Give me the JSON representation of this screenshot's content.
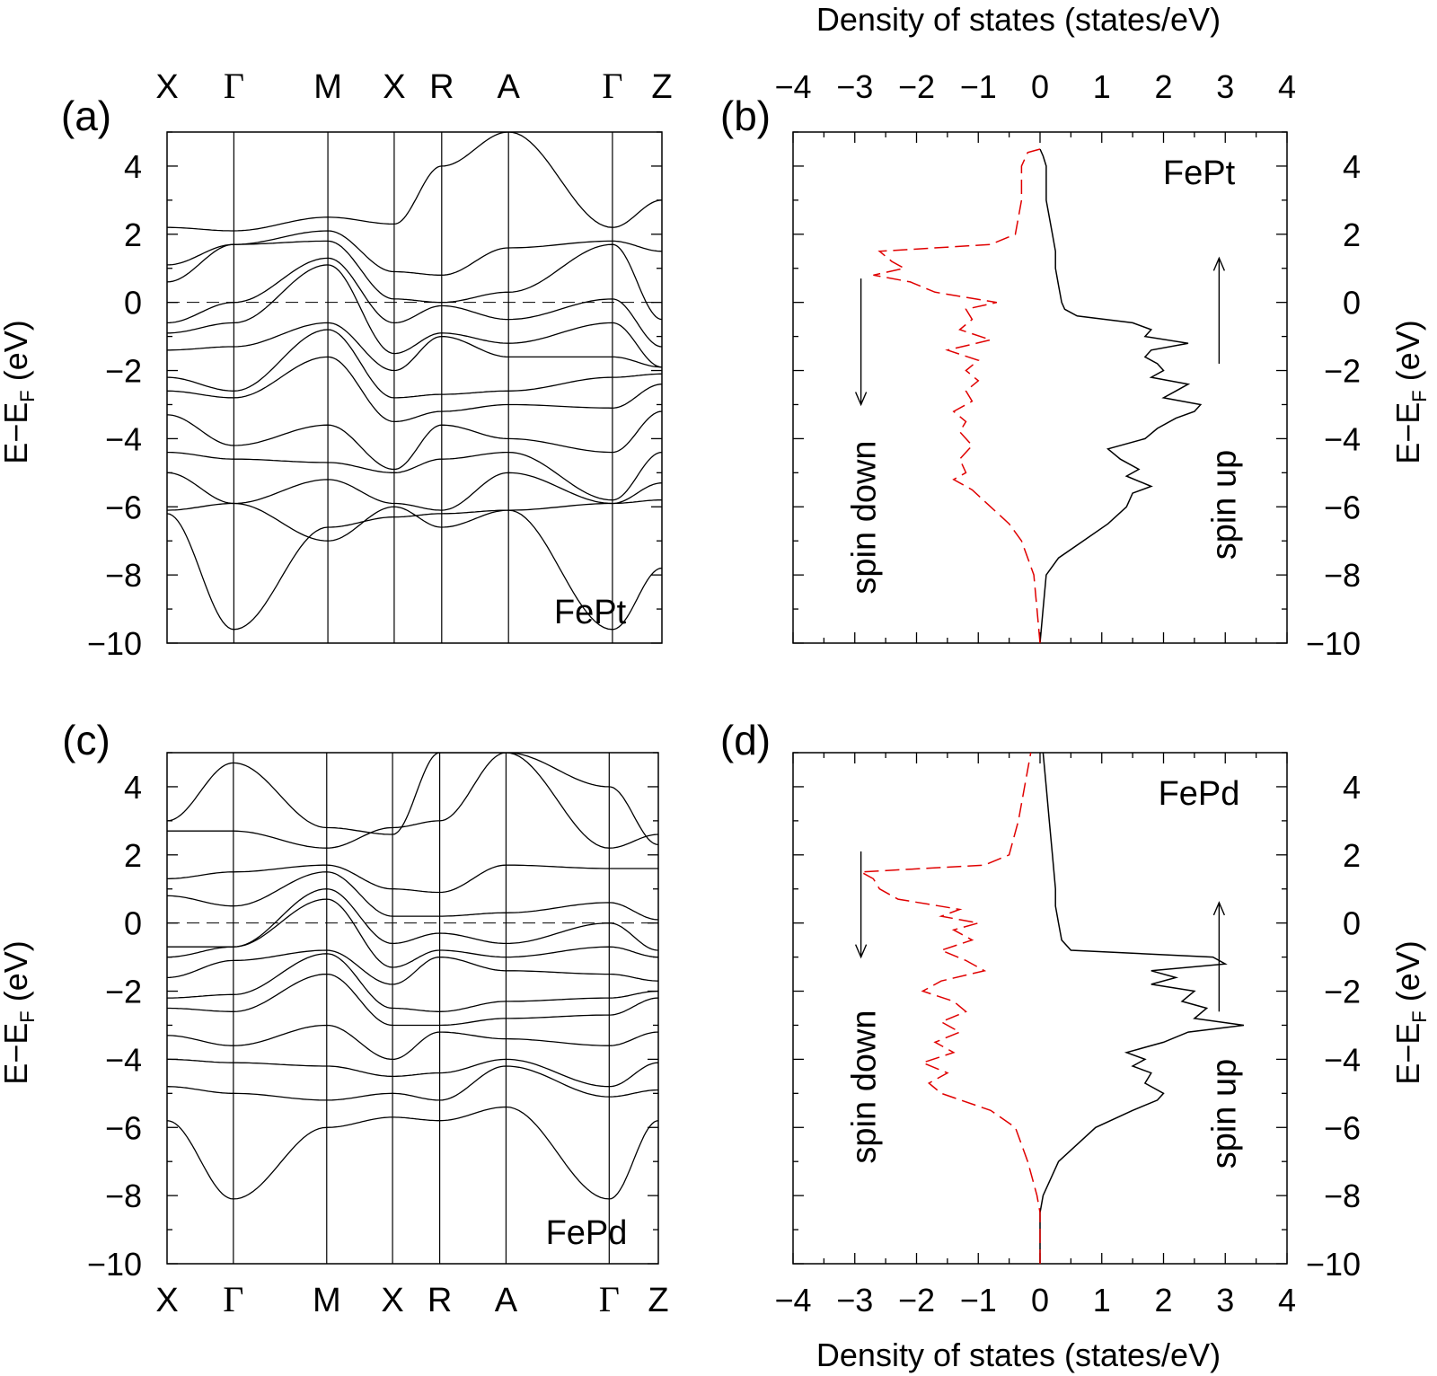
{
  "figure": {
    "top_axis_title": "Density of states (states/eV)",
    "bottom_axis_title": "Density of states (states/eV)",
    "colors": {
      "spin_up": "#000000",
      "spin_down": "#e00000",
      "bands": "#000000"
    }
  },
  "chart_data": [
    {
      "panel": "(a)",
      "type": "line",
      "material": "FePt",
      "ylabel": "E−E_F (eV)",
      "ylim": [
        -10,
        5
      ],
      "yticks": [
        "−10",
        "−8",
        "−6",
        "−4",
        "−2",
        "0",
        "2",
        "4"
      ],
      "kpoints": [
        "X",
        "Γ",
        "M",
        "X",
        "R",
        "A",
        "Γ",
        "Z"
      ],
      "kpoint_axis": "top",
      "fermi_level": 0,
      "band_energies_at_kpoints_eV": [
        [
          -6.2,
          -9.6,
          -6.6,
          -6.3,
          -6.2,
          -6.1,
          -9.6,
          -7.8
        ],
        [
          -6.1,
          -5.9,
          -7.0,
          -6.0,
          -6.6,
          -6.1,
          -5.9,
          -5.8
        ],
        [
          -5.0,
          -5.9,
          -5.2,
          -5.9,
          -6.1,
          -5.0,
          -5.9,
          -5.3
        ],
        [
          -4.4,
          -4.6,
          -4.7,
          -5.0,
          -4.6,
          -4.4,
          -5.8,
          -4.4
        ],
        [
          -3.3,
          -4.2,
          -3.6,
          -4.9,
          -3.6,
          -4.0,
          -4.4,
          -3.2
        ],
        [
          -2.6,
          -2.8,
          -1.6,
          -3.5,
          -3.2,
          -3.0,
          -3.1,
          -2.4
        ],
        [
          -2.2,
          -2.6,
          -0.8,
          -2.8,
          -2.7,
          -2.6,
          -2.2,
          -2.1
        ],
        [
          -1.4,
          -1.3,
          -0.6,
          -2.0,
          -1.0,
          -1.6,
          -1.6,
          -1.9
        ],
        [
          -0.9,
          -0.6,
          1.1,
          -1.5,
          -0.9,
          -1.2,
          -0.6,
          -1.9
        ],
        [
          -0.6,
          0.0,
          1.3,
          -0.6,
          -0.1,
          -0.5,
          0.1,
          -1.3
        ],
        [
          0.6,
          1.7,
          1.8,
          0.1,
          0.0,
          0.3,
          1.7,
          -0.5
        ],
        [
          1.1,
          1.7,
          2.1,
          0.9,
          0.8,
          1.6,
          1.8,
          1.5
        ],
        [
          2.2,
          2.1,
          2.5,
          2.3,
          4.0,
          5.0,
          2.2,
          3.0
        ]
      ]
    },
    {
      "panel": "(b)",
      "type": "line",
      "material": "FePt",
      "xlabel": "Density of states (states/eV)",
      "ylabel": "E−E_F (eV)",
      "xlim": [
        -4,
        4
      ],
      "ylim": [
        -10,
        5
      ],
      "xticks": [
        "−4",
        "−3",
        "−2",
        "−1",
        "0",
        "1",
        "2",
        "3",
        "4"
      ],
      "yticks": [
        "−10",
        "−8",
        "−6",
        "−4",
        "−2",
        "0",
        "2",
        "4"
      ],
      "annotations": [
        "spin up",
        "spin down"
      ],
      "series": [
        {
          "name": "spin up",
          "energy": [
            -10,
            -9,
            -8,
            -7.5,
            -7,
            -6.5,
            -6,
            -5.6,
            -5.4,
            -5.1,
            -4.9,
            -4.6,
            -4.3,
            -4,
            -3.7,
            -3.4,
            -3.2,
            -3.0,
            -2.8,
            -2.6,
            -2.4,
            -2.2,
            -2.0,
            -1.8,
            -1.6,
            -1.4,
            -1.2,
            -1.0,
            -0.8,
            -0.6,
            -0.4,
            -0.2,
            0,
            0.5,
            1,
            1.5,
            2,
            3,
            4,
            4.3,
            4.5
          ],
          "dos": [
            0.0,
            0.05,
            0.1,
            0.3,
            0.7,
            1.1,
            1.4,
            1.5,
            1.8,
            1.4,
            1.6,
            1.3,
            1.1,
            1.7,
            1.9,
            2.2,
            2.5,
            2.6,
            2.0,
            2.2,
            2.4,
            1.8,
            2.0,
            1.9,
            1.7,
            1.8,
            2.4,
            1.7,
            1.8,
            1.5,
            0.6,
            0.4,
            0.35,
            0.3,
            0.25,
            0.25,
            0.2,
            0.1,
            0.1,
            0.05,
            0.0
          ]
        },
        {
          "name": "spin down",
          "energy": [
            -10,
            -9,
            -8,
            -7.5,
            -7,
            -6.5,
            -6,
            -5.5,
            -5.2,
            -5.0,
            -4.6,
            -4.2,
            -3.8,
            -3.5,
            -3.2,
            -2.9,
            -2.6,
            -2.3,
            -2.0,
            -1.7,
            -1.4,
            -1.1,
            -0.8,
            -0.5,
            -0.2,
            0,
            0.3,
            0.6,
            0.8,
            1.0,
            1.2,
            1.5,
            1.7,
            2,
            3,
            4,
            4.4,
            4.5
          ],
          "dos": [
            0.0,
            -0.05,
            -0.1,
            -0.2,
            -0.3,
            -0.5,
            -0.8,
            -1.1,
            -1.4,
            -1.2,
            -1.3,
            -1.1,
            -1.3,
            -1.2,
            -1.4,
            -1.1,
            -1.2,
            -1.0,
            -1.2,
            -1.0,
            -1.5,
            -0.8,
            -1.3,
            -1.1,
            -1.2,
            -0.7,
            -1.7,
            -2.1,
            -2.7,
            -2.2,
            -2.4,
            -2.6,
            -0.8,
            -0.4,
            -0.3,
            -0.3,
            -0.2,
            0.0
          ]
        }
      ]
    },
    {
      "panel": "(c)",
      "type": "line",
      "material": "FePd",
      "ylabel": "E−E_F (eV)",
      "ylim": [
        -10,
        5
      ],
      "yticks": [
        "−10",
        "−8",
        "−6",
        "−4",
        "−2",
        "0",
        "2",
        "4"
      ],
      "kpoints": [
        "X",
        "Γ",
        "M",
        "X",
        "R",
        "A",
        "Γ",
        "Z"
      ],
      "kpoint_axis": "bottom",
      "fermi_level": 0,
      "band_energies_at_kpoints_eV": [
        [
          -5.8,
          -8.1,
          -6.0,
          -5.7,
          -5.8,
          -5.4,
          -8.1,
          -5.8
        ],
        [
          -4.8,
          -5.0,
          -5.2,
          -5.0,
          -5.2,
          -4.2,
          -5.1,
          -4.9
        ],
        [
          -4.0,
          -4.1,
          -4.2,
          -4.5,
          -4.4,
          -4.0,
          -4.8,
          -4.1
        ],
        [
          -3.3,
          -3.6,
          -3.0,
          -4.0,
          -3.2,
          -3.4,
          -3.6,
          -3.2
        ],
        [
          -2.5,
          -2.6,
          -1.5,
          -3.0,
          -3.0,
          -2.8,
          -2.7,
          -2.2
        ],
        [
          -2.2,
          -2.1,
          -0.9,
          -2.5,
          -2.6,
          -2.3,
          -2.2,
          -2.0
        ],
        [
          -1.6,
          -1.1,
          -0.8,
          -1.8,
          -1.0,
          -1.4,
          -1.5,
          -1.7
        ],
        [
          -1.0,
          -0.7,
          0.7,
          -1.3,
          -0.8,
          -1.0,
          -0.7,
          -1.0
        ],
        [
          -0.7,
          -0.7,
          1.0,
          -0.6,
          -0.3,
          -0.6,
          0.0,
          -0.8
        ],
        [
          0.8,
          0.5,
          1.5,
          0.2,
          0.2,
          0.3,
          0.6,
          0.1
        ],
        [
          1.3,
          1.5,
          1.7,
          1.0,
          0.9,
          1.7,
          1.6,
          1.6
        ],
        [
          2.7,
          2.7,
          2.2,
          2.8,
          3.0,
          5.0,
          2.2,
          2.6
        ],
        [
          3.0,
          4.7,
          2.8,
          2.6,
          5.0,
          5.0,
          4.0,
          2.3
        ]
      ]
    },
    {
      "panel": "(d)",
      "type": "line",
      "material": "FePd",
      "xlabel": "Density of states (states/eV)",
      "ylabel": "E−E_F (eV)",
      "xlim": [
        -4,
        4
      ],
      "ylim": [
        -10,
        5
      ],
      "xticks": [
        "−4",
        "−3",
        "−2",
        "−1",
        "0",
        "1",
        "2",
        "3",
        "4"
      ],
      "yticks": [
        "−10",
        "−8",
        "−6",
        "−4",
        "−2",
        "0",
        "2",
        "4"
      ],
      "annotations": [
        "spin up",
        "spin down"
      ],
      "series": [
        {
          "name": "spin up",
          "energy": [
            -10,
            -8.5,
            -8,
            -7,
            -6.5,
            -6.0,
            -5.5,
            -5.2,
            -5.0,
            -4.7,
            -4.4,
            -4.2,
            -4.0,
            -3.8,
            -3.5,
            -3.2,
            -3.0,
            -2.8,
            -2.5,
            -2.3,
            -2.0,
            -1.8,
            -1.6,
            -1.4,
            -1.2,
            -1.0,
            -0.8,
            -0.5,
            0,
            0.5,
            1,
            2,
            3,
            4,
            5
          ],
          "dos": [
            0.0,
            0.0,
            0.05,
            0.3,
            0.6,
            0.9,
            1.5,
            1.9,
            2.0,
            1.7,
            1.8,
            1.5,
            1.7,
            1.4,
            2.0,
            2.4,
            3.3,
            2.5,
            2.7,
            2.3,
            2.5,
            1.8,
            2.2,
            1.8,
            3.0,
            2.8,
            0.5,
            0.35,
            0.3,
            0.25,
            0.25,
            0.2,
            0.15,
            0.1,
            0.05
          ]
        },
        {
          "name": "spin down",
          "energy": [
            -10,
            -8.5,
            -8,
            -7,
            -6,
            -5.5,
            -5.0,
            -4.7,
            -4.4,
            -4.1,
            -3.8,
            -3.5,
            -3.2,
            -2.9,
            -2.6,
            -2.3,
            -2.0,
            -1.7,
            -1.4,
            -1.1,
            -0.8,
            -0.5,
            -0.2,
            0,
            0.2,
            0.4,
            0.7,
            1.0,
            1.3,
            1.5,
            1.7,
            2,
            3,
            4,
            5
          ],
          "dos": [
            0.0,
            0.0,
            -0.05,
            -0.2,
            -0.4,
            -0.8,
            -1.6,
            -1.8,
            -1.5,
            -1.9,
            -1.4,
            -1.7,
            -1.3,
            -1.6,
            -1.2,
            -1.4,
            -1.9,
            -1.6,
            -0.9,
            -1.2,
            -1.6,
            -1.1,
            -1.4,
            -1.0,
            -1.6,
            -1.3,
            -2.3,
            -2.6,
            -2.7,
            -2.9,
            -0.9,
            -0.5,
            -0.35,
            -0.25,
            -0.15
          ]
        }
      ]
    }
  ]
}
